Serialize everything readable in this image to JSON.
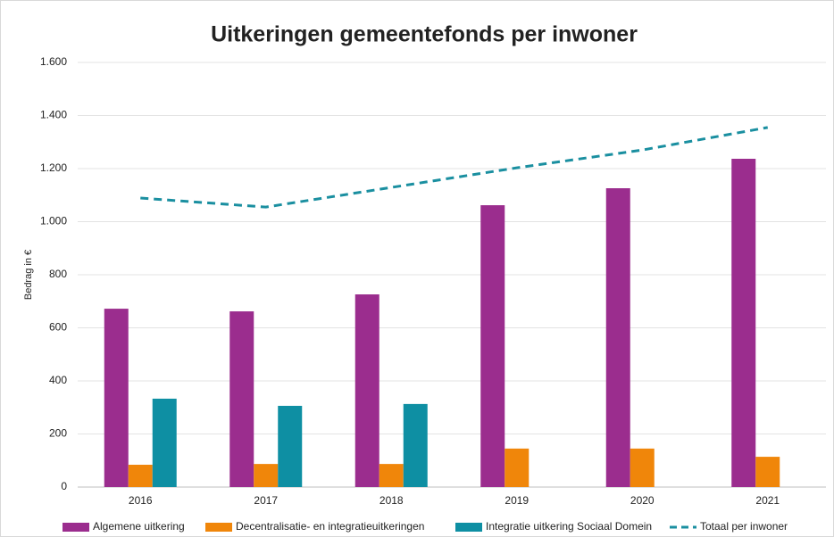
{
  "chart_data": {
    "type": "bar",
    "title": "Uitkeringen gemeentefonds per inwoner",
    "y_label": "Bedrag in €",
    "categories": [
      "2016",
      "2017",
      "2018",
      "2019",
      "2020",
      "2021"
    ],
    "series": [
      {
        "name": "Algemene uitkering",
        "color": "#9b2d8e",
        "values": [
          672,
          662,
          726,
          1062,
          1126,
          1237
        ]
      },
      {
        "name": "Decentralisatie- en integratieuitkeringen",
        "color": "#f0860a",
        "values": [
          84,
          87,
          87,
          145,
          145,
          114
        ]
      },
      {
        "name": "Integratie uitkering Sociaal Domein",
        "color": "#0e8fa3",
        "values": [
          333,
          306,
          313,
          null,
          null,
          null
        ]
      },
      {
        "name": "Totaal per inwoner",
        "color": "#1a8fa0",
        "type": "line",
        "dashed": true,
        "values": [
          1089,
          1055,
          1129,
          1203,
          1270,
          1355
        ]
      }
    ],
    "ylim": [
      0,
      1600
    ],
    "yticks": [
      0,
      200,
      400,
      600,
      800,
      {
        "value": 1000,
        "label": "1.000"
      },
      {
        "value": 1200,
        "label": "1.200"
      },
      {
        "value": 1400,
        "label": "1.400"
      },
      {
        "value": 1600,
        "label": "1.600"
      }
    ],
    "grid": true,
    "legend": "bottom"
  }
}
